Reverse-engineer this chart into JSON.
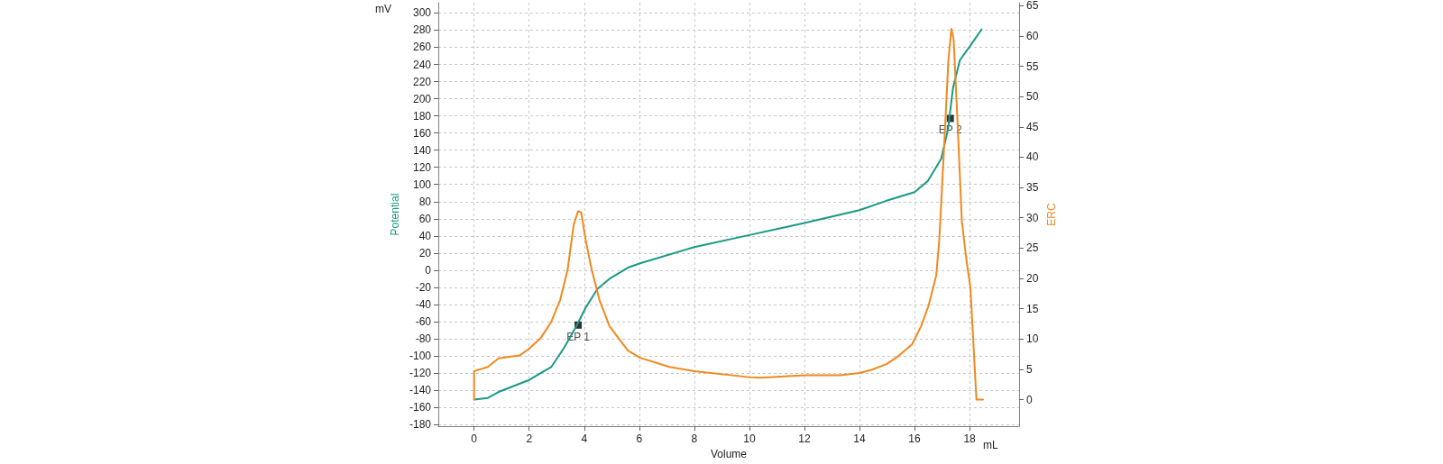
{
  "chart_data": {
    "type": "line",
    "xlabel": "Volume",
    "ylabel": "Potential",
    "y2label": "ERC",
    "xlim": [
      -1.3,
      19.8
    ],
    "xticks": [
      0,
      2,
      4,
      6,
      8,
      10,
      12,
      14,
      16,
      18
    ],
    "ylim": [
      -182,
      312
    ],
    "yticks": [
      -180,
      -160,
      -140,
      -120,
      -100,
      -80,
      -60,
      -40,
      -20,
      0,
      20,
      40,
      60,
      80,
      100,
      120,
      140,
      160,
      180,
      200,
      220,
      240,
      260,
      280,
      300
    ],
    "y2lim": [
      -4.4,
      65.5
    ],
    "y2ticks": [
      0,
      5,
      10,
      15,
      20,
      25,
      30,
      35,
      40,
      45,
      50,
      55,
      60,
      65
    ],
    "grid": true,
    "line_style": "solid",
    "marker": "none",
    "series": [
      {
        "color": "#1a9985",
        "x": [
          0,
          0.5,
          0.89,
          2,
          2.8,
          3.28,
          3.72,
          4.05,
          4.48,
          4.92,
          5.59,
          6.03,
          8,
          10,
          12,
          14,
          14.98,
          16,
          16.48,
          16.97,
          17.22,
          17.4,
          17.65,
          18.03,
          18.44
        ],
        "values": [
          -151,
          -149,
          -142,
          -128,
          -113,
          -90,
          -65,
          -44,
          -22,
          -10,
          3,
          8,
          27,
          41,
          55,
          70,
          81,
          91,
          104,
          130,
          165,
          213,
          245,
          262,
          281
        ]
      },
      {
        "color": "#f0891e",
        "axis": "y2",
        "x": [
          0,
          0,
          0.5,
          0.89,
          1.33,
          1.66,
          2,
          2.41,
          2.8,
          3.13,
          3.4,
          3.62,
          3.78,
          3.89,
          4.05,
          4.27,
          4.55,
          4.92,
          5.59,
          6.03,
          7.1,
          8,
          10,
          10.4,
          12,
          13.3,
          14,
          14.44,
          15,
          15.42,
          15.91,
          16.24,
          16.51,
          16.79,
          16.9,
          17.07,
          17.23,
          17.34,
          17.42,
          17.56,
          17.72,
          17.89,
          18.03,
          18.25,
          18.49
        ],
        "values": [
          0,
          4.7,
          5.4,
          6.8,
          7.1,
          7.3,
          8.4,
          10.1,
          12.8,
          16.5,
          21.5,
          28.9,
          31.1,
          30.9,
          26.4,
          21.5,
          16.5,
          12.1,
          8.1,
          6.9,
          5.4,
          4.7,
          3.7,
          3.6,
          4,
          4,
          4.4,
          4.9,
          5.9,
          7.2,
          9.1,
          12.1,
          15.5,
          20.5,
          26.4,
          41.2,
          56,
          61.2,
          59.5,
          46.1,
          29.4,
          22.9,
          18.5,
          0,
          0
        ]
      }
    ],
    "annotations": [
      "mV",
      "mL",
      {
        "text": "EP 1",
        "x": 3.78,
        "y": -64
      },
      {
        "text": "EP 2",
        "x": 17.3,
        "y": 177
      }
    ]
  }
}
